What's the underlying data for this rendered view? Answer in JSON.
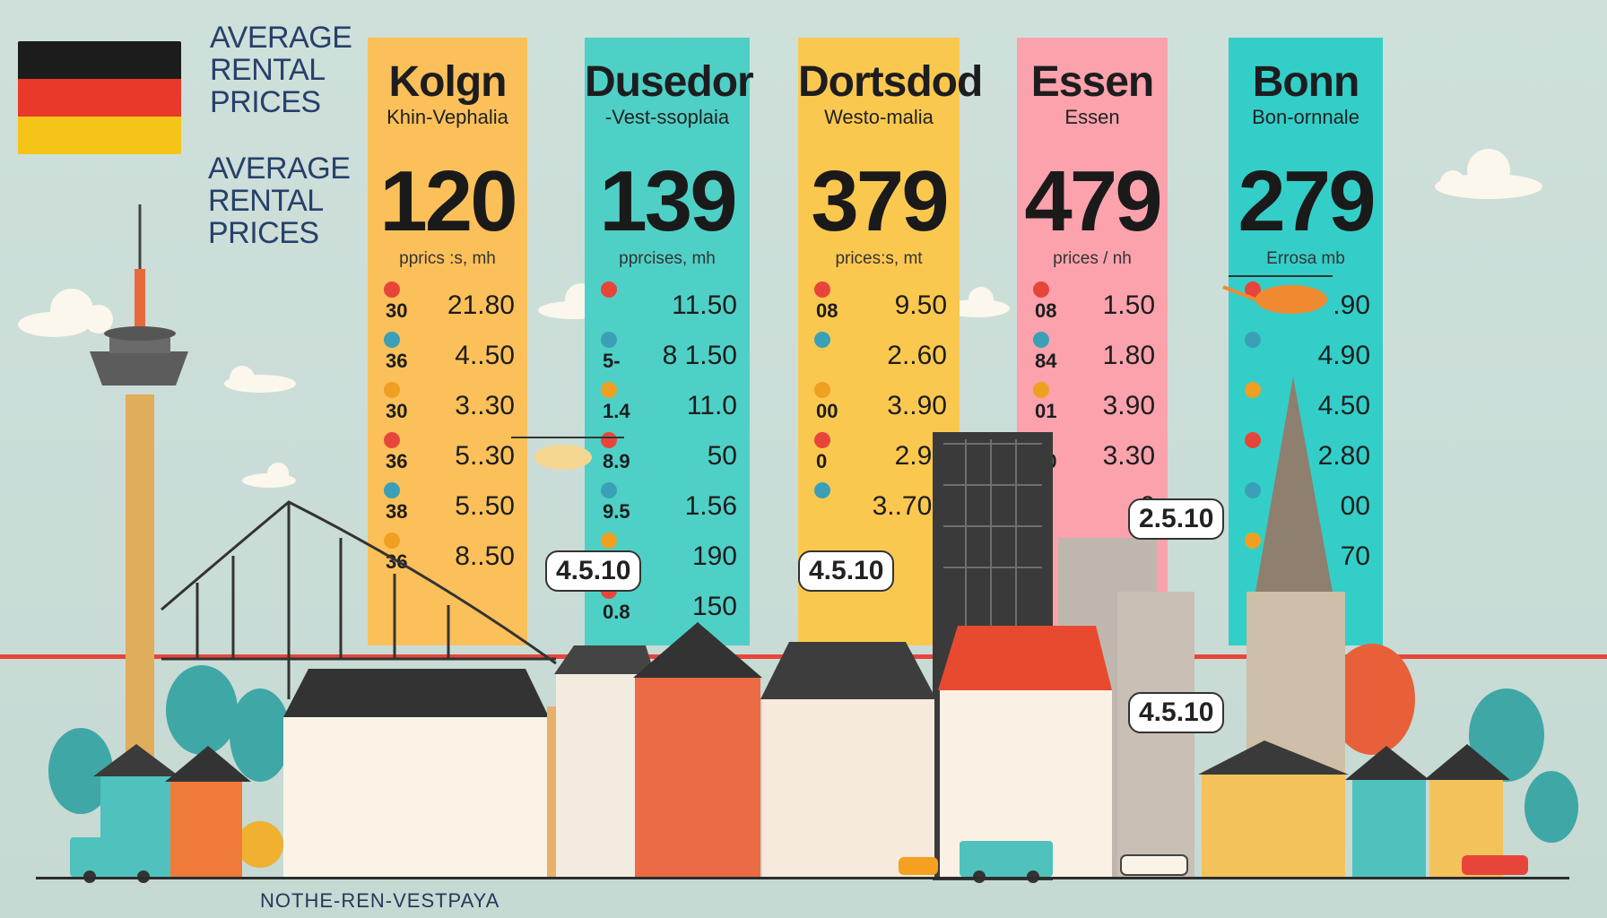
{
  "header": {
    "title_top": [
      "AVERAGE",
      "RENTAL",
      "PRICES"
    ],
    "title_mid": [
      "AVERAGE",
      "RENTAL",
      "PRICES"
    ]
  },
  "flag_colors": [
    "#1c1c1c",
    "#e8392a",
    "#f5c418"
  ],
  "columns": [
    {
      "name": "Kolgn",
      "subtitle": "Khin-Vephalia",
      "big": "120",
      "unit": "pprics :s, mh",
      "color": "#fbc05a",
      "rows": [
        {
          "code": "30",
          "value": "21.80"
        },
        {
          "code": "36",
          "value": "4..50"
        },
        {
          "code": "30",
          "value": "3..30"
        },
        {
          "code": "36",
          "value": "5..30"
        },
        {
          "code": "38",
          "value": "5..50"
        },
        {
          "code": "36",
          "value": "8..50"
        }
      ]
    },
    {
      "name": "Dusedor",
      "subtitle": "-Vest-ssoplaia",
      "big": "139",
      "unit": "pprcises, mh",
      "color": "#4fd0c6",
      "rows": [
        {
          "code": "",
          "value": "11.50"
        },
        {
          "code": "5-",
          "value": "8 1.50"
        },
        {
          "code": "1.4",
          "value": "11.0"
        },
        {
          "code": "8.9",
          "value": "50"
        },
        {
          "code": "9.5",
          "value": "1.56"
        },
        {
          "code": "3",
          "value": "190"
        },
        {
          "code": "0.8",
          "value": "150"
        }
      ]
    },
    {
      "name": "Dortsdod",
      "subtitle": "Westo-malia",
      "big": "379",
      "unit": "prices:s, mt",
      "color": "#fbc84f",
      "rows": [
        {
          "code": "08",
          "value": "9.50"
        },
        {
          "code": "",
          "value": "2..60"
        },
        {
          "code": "00",
          "value": "3..90"
        },
        {
          "code": "0",
          "value": "2.90"
        },
        {
          "code": "",
          "value": "3..70d"
        }
      ]
    },
    {
      "name": "Essen",
      "subtitle": "Essen",
      "big": "479",
      "unit": "prices / nh",
      "color": "#fba2ad",
      "rows": [
        {
          "code": "08",
          "value": "1.50"
        },
        {
          "code": "84",
          "value": "1.80"
        },
        {
          "code": "01",
          "value": "3.90"
        },
        {
          "code": "30",
          "value": "3.30"
        },
        {
          "code": "3",
          "value": "0"
        }
      ]
    },
    {
      "name": "Bonn",
      "subtitle": "Bon-ornnale",
      "big": "279",
      "unit": "Errosa mb",
      "color": "#34cec8",
      "rows": [
        {
          "code": "",
          "value": ".90"
        },
        {
          "code": "",
          "value": "4.90"
        },
        {
          "code": "",
          "value": "4.50"
        },
        {
          "code": "",
          "value": "2.80"
        },
        {
          "code": "",
          "value": "00"
        },
        {
          "code": "",
          "value": "70"
        }
      ]
    }
  ],
  "bubbles": [
    "4.5.10",
    "4.5.10",
    "2.5.10",
    "4.5.10"
  ],
  "footer": "NOTHE-REN-VESTPAYA"
}
